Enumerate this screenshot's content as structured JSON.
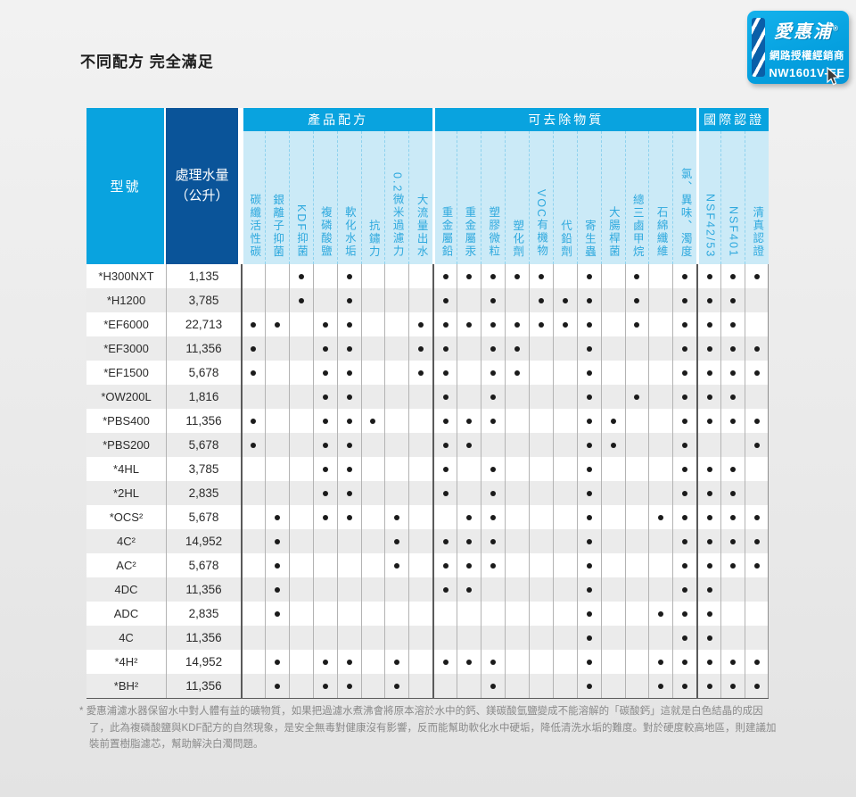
{
  "page": {
    "title": "不同配方 完全滿足"
  },
  "badge": {
    "brand": "愛惠浦",
    "reg": "®",
    "line1": "網路授權經銷商",
    "line2": "NW1601V-EE",
    "bg_color": "#05a0df",
    "band_color": "#0a5fa8"
  },
  "table": {
    "col_model": "型號",
    "col_volume_line1": "處理水量",
    "col_volume_line2": "（公升）",
    "groups": [
      {
        "label": "產品配方",
        "span": 8
      },
      {
        "label": "可去除物質",
        "span": 11
      },
      {
        "label": "國際認證",
        "span": 3
      }
    ],
    "columns": [
      "碳纖活性碳",
      "銀離子抑菌",
      "KDF抑菌",
      "複磷酸鹽",
      "軟化水垢",
      "抗鏽力",
      "0.2微米過濾力",
      "大流量出水",
      "重金屬鉛",
      "重金屬汞",
      "塑膠微粒",
      "塑化劑",
      "VOC有機物",
      "代鉛劑",
      "寄生蟲",
      "大腸桿菌",
      "總三鹵甲烷",
      "石綿纖維",
      "氯、異味、濁度",
      "NSF42/53",
      "NSF401",
      "清真認證"
    ],
    "rows": [
      {
        "model": "*H300NXT",
        "volume": "1,135",
        "dots": [
          3,
          5,
          9,
          10,
          11,
          12,
          13,
          15,
          17,
          19,
          20,
          21,
          22
        ]
      },
      {
        "model": "*H1200",
        "volume": "3,785",
        "dots": [
          3,
          5,
          9,
          11,
          13,
          14,
          15,
          17,
          19,
          20,
          21
        ]
      },
      {
        "model": "*EF6000",
        "volume": "22,713",
        "dots": [
          1,
          2,
          4,
          5,
          8,
          9,
          10,
          11,
          12,
          13,
          14,
          15,
          17,
          19,
          20,
          21
        ]
      },
      {
        "model": "*EF3000",
        "volume": "11,356",
        "dots": [
          1,
          4,
          5,
          8,
          9,
          11,
          12,
          15,
          19,
          20,
          21,
          22
        ]
      },
      {
        "model": "*EF1500",
        "volume": "5,678",
        "dots": [
          1,
          4,
          5,
          8,
          9,
          11,
          12,
          15,
          19,
          20,
          21,
          22
        ]
      },
      {
        "model": "*OW200L",
        "volume": "1,816",
        "dots": [
          4,
          5,
          9,
          11,
          15,
          17,
          19,
          20,
          21
        ]
      },
      {
        "model": "*PBS400",
        "volume": "11,356",
        "dots": [
          1,
          4,
          5,
          6,
          9,
          10,
          11,
          15,
          16,
          19,
          20,
          21,
          22
        ]
      },
      {
        "model": "*PBS200",
        "volume": "5,678",
        "dots": [
          1,
          4,
          5,
          9,
          10,
          15,
          16,
          19,
          22
        ]
      },
      {
        "model": "*4HL",
        "volume": "3,785",
        "dots": [
          4,
          5,
          9,
          11,
          15,
          19,
          20,
          21
        ]
      },
      {
        "model": "*2HL",
        "volume": "2,835",
        "dots": [
          4,
          5,
          9,
          11,
          15,
          19,
          20,
          21
        ]
      },
      {
        "model": "*OCS²",
        "volume": "5,678",
        "dots": [
          2,
          4,
          5,
          7,
          10,
          11,
          15,
          18,
          19,
          20,
          21,
          22
        ]
      },
      {
        "model": "4C²",
        "volume": "14,952",
        "dots": [
          2,
          7,
          9,
          10,
          11,
          15,
          19,
          20,
          21,
          22
        ]
      },
      {
        "model": "AC²",
        "volume": "5,678",
        "dots": [
          2,
          7,
          9,
          10,
          11,
          15,
          19,
          20,
          21,
          22
        ]
      },
      {
        "model": "4DC",
        "volume": "11,356",
        "dots": [
          2,
          9,
          10,
          15,
          19,
          20
        ]
      },
      {
        "model": "ADC",
        "volume": "2,835",
        "dots": [
          2,
          15,
          18,
          19,
          20
        ]
      },
      {
        "model": "4C",
        "volume": "11,356",
        "dots": [
          15,
          19,
          20
        ]
      },
      {
        "model": "*4H²",
        "volume": "14,952",
        "dots": [
          2,
          4,
          5,
          7,
          9,
          10,
          11,
          15,
          18,
          19,
          20,
          21,
          22
        ]
      },
      {
        "model": "*BH²",
        "volume": "11,356",
        "dots": [
          2,
          4,
          5,
          7,
          11,
          15,
          18,
          19,
          20,
          21,
          22
        ]
      }
    ]
  },
  "footnote": {
    "star": "*",
    "text": "愛惠浦濾水器保留水中對人體有益的礦物質，如果把過濾水煮沸會將原本溶於水中的鈣、鎂碳酸氫鹽變成不能溶解的「碳酸鈣」這就是白色結晶的成因了，此為複磷酸鹽與KDF配方的自然現象，是安全無毒對健康沒有影響，反而能幫助軟化水中硬垢，降低清洗水垢的難度。對於硬度較高地區，則建議加裝前置樹脂濾芯，幫助解決白濁問題。"
  },
  "colors": {
    "header_blue": "#09a3df",
    "header_dark_blue": "#0a5499",
    "label_bg": "#cbeaf7",
    "label_text": "#2fa9de",
    "row_alt": "#ebebeb",
    "dot": "#1b1b1b"
  }
}
